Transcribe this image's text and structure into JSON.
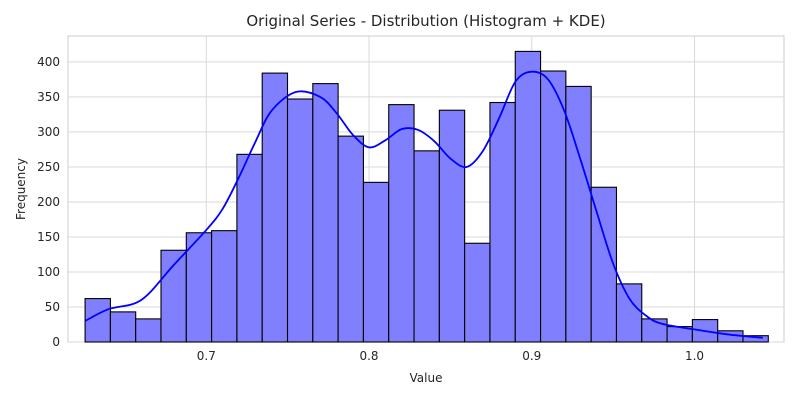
{
  "chart_data": {
    "type": "bar",
    "title": "Original Series - Distribution (Histogram + KDE)",
    "xlabel": "Value",
    "ylabel": "Frequency",
    "xlim": [
      0.615,
      1.055
    ],
    "ylim": [
      0,
      437
    ],
    "x_ticks": [
      "0.7",
      "0.8",
      "0.9",
      "1.0"
    ],
    "x_tick_values": [
      0.7,
      0.8,
      0.9,
      1.0
    ],
    "y_ticks": [
      "0",
      "50",
      "100",
      "150",
      "200",
      "250",
      "300",
      "350",
      "400"
    ],
    "y_tick_values": [
      0,
      50,
      100,
      150,
      200,
      250,
      300,
      350,
      400
    ],
    "grid": true,
    "bin_start": 0.6255,
    "bin_width": 0.01555,
    "counts": [
      62,
      43,
      33,
      131,
      156,
      159,
      268,
      384,
      347,
      369,
      294,
      228,
      339,
      273,
      331,
      141,
      342,
      415,
      387,
      365,
      221,
      83,
      33,
      22,
      32,
      16,
      9
    ],
    "kde_x": [
      0.6255,
      0.64,
      0.66,
      0.68,
      0.7,
      0.71,
      0.72,
      0.73,
      0.74,
      0.755,
      0.77,
      0.78,
      0.79,
      0.8,
      0.81,
      0.82,
      0.83,
      0.84,
      0.85,
      0.86,
      0.87,
      0.88,
      0.89,
      0.9,
      0.91,
      0.92,
      0.93,
      0.94,
      0.95,
      0.96,
      0.97,
      0.98,
      1.0,
      1.02,
      1.042
    ],
    "kde_y": [
      30,
      47,
      60,
      110,
      160,
      190,
      235,
      285,
      330,
      357,
      350,
      327,
      296,
      278,
      288,
      304,
      303,
      287,
      262,
      250,
      273,
      320,
      372,
      386,
      375,
      330,
      260,
      185,
      112,
      62,
      38,
      26,
      18,
      11,
      6
    ],
    "colors": {
      "bar_fill": "#8080ff",
      "bar_edge": "#000000",
      "kde_line": "#0000ff",
      "grid": "#d9d9d9"
    }
  }
}
